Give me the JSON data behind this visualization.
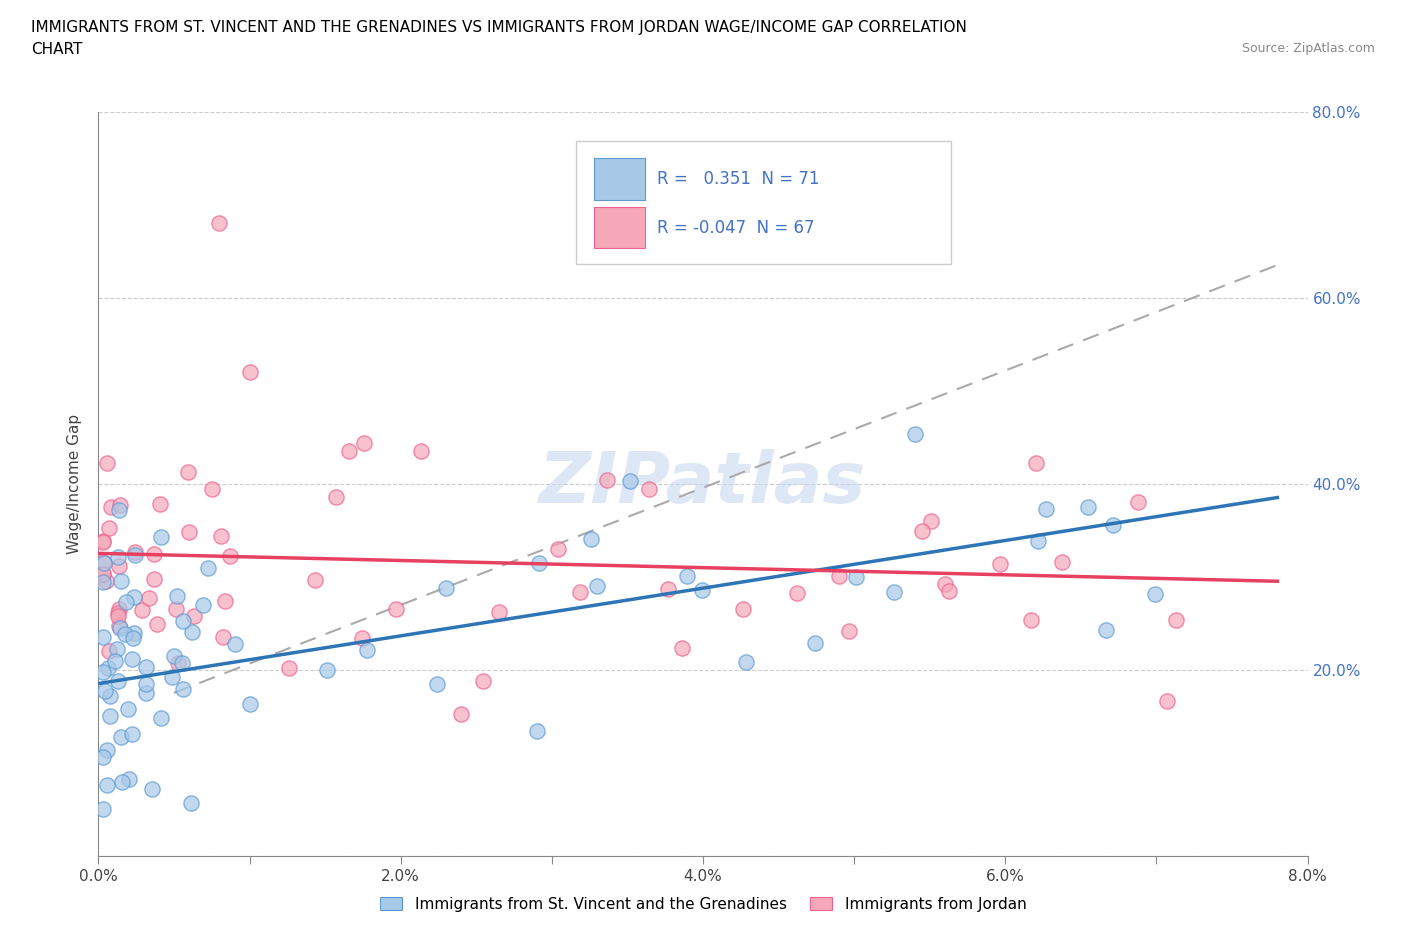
{
  "title_line1": "IMMIGRANTS FROM ST. VINCENT AND THE GRENADINES VS IMMIGRANTS FROM JORDAN WAGE/INCOME GAP CORRELATION",
  "title_line2": "CHART",
  "source_text": "Source: ZipAtlas.com",
  "ylabel": "Wage/Income Gap",
  "xlim": [
    0.0,
    0.08
  ],
  "ylim": [
    0.0,
    0.8
  ],
  "xticks": [
    0.0,
    0.01,
    0.02,
    0.03,
    0.04,
    0.05,
    0.06,
    0.07,
    0.08
  ],
  "yticks": [
    0.0,
    0.2,
    0.4,
    0.6,
    0.8
  ],
  "xtick_labels": [
    "0.0%",
    "",
    "2.0%",
    "",
    "4.0%",
    "",
    "6.0%",
    "",
    "8.0%"
  ],
  "ytick_labels_right": [
    "",
    "20.0%",
    "40.0%",
    "60.0%",
    "80.0%"
  ],
  "blue_color": "#a8c8e8",
  "pink_color": "#f4a8b8",
  "blue_edge_color": "#5b9bd5",
  "pink_edge_color": "#f06090",
  "blue_line_color": "#2e75b6",
  "pink_line_color": "#e84060",
  "gray_dash_color": "#aaaaaa",
  "R_blue": 0.351,
  "N_blue": 71,
  "R_pink": -0.047,
  "N_pink": 67,
  "watermark": "ZIPatlas",
  "legend_label_blue": "Immigrants from St. Vincent and the Grenadines",
  "legend_label_pink": "Immigrants from Jordan",
  "blue_line_x": [
    0.0,
    0.078
  ],
  "blue_line_y": [
    0.185,
    0.385
  ],
  "pink_line_x": [
    0.0,
    0.078
  ],
  "pink_line_y": [
    0.325,
    0.295
  ],
  "gray_line_x": [
    0.005,
    0.078
  ],
  "gray_line_y": [
    0.175,
    0.635
  ]
}
